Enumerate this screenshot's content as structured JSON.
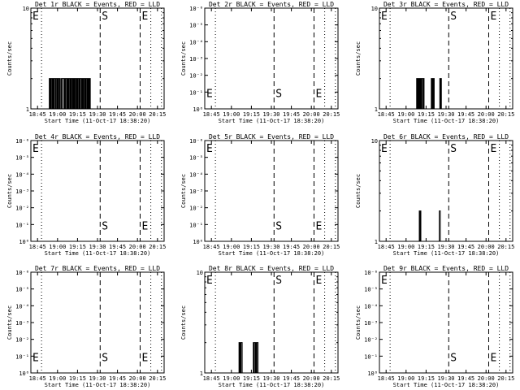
{
  "figure": {
    "xlabel": "Start Time (11-Oct-17 18:38:20)",
    "ylabel": "Counts/sec",
    "time_ticks": [
      "18:45",
      "19:00",
      "19:15",
      "19:30",
      "19:45",
      "20:00",
      "20:15"
    ],
    "markers": {
      "E_left": "E",
      "S": "S",
      "E_right": "E"
    },
    "colors": {
      "events": "#000000",
      "lld": "#ff0000",
      "background": "#ffffff"
    }
  },
  "chart_data": [
    {
      "type": "line",
      "title": "Det 1r BLACK = Events, RED = LLD",
      "yscale": "log",
      "yticks": [
        "1",
        "10"
      ],
      "ylim": [
        1,
        10
      ],
      "xlim_minutes": [
        0,
        100
      ],
      "vlines_dotted_minutes": [
        8,
        90,
        98
      ],
      "vlines_dashed_minutes": [
        52,
        82
      ],
      "series": [
        {
          "values_x_minutes": [
            13.5,
            13.8,
            14.0,
            14.3,
            14.6,
            15.0,
            15.3,
            15.7,
            16.0,
            16.3,
            16.7,
            17.1,
            17.5,
            17.9,
            18.3,
            18.7,
            19.0,
            19.4,
            19.8,
            20.2,
            20.6,
            21.0,
            21.3,
            21.7,
            22.1,
            22.5,
            22.9,
            23.2,
            23.6,
            24.0,
            24.4,
            24.8,
            25.2,
            25.5,
            25.9,
            26.3,
            26.7,
            27.0,
            27.4,
            27.8,
            28.2,
            28.6,
            29.0,
            29.3,
            29.7,
            30.1,
            30.5,
            30.9,
            31.2,
            31.6,
            32.0,
            32.4,
            32.8,
            33.2,
            33.5,
            33.9,
            34.3,
            34.7,
            35.1,
            35.5,
            35.8,
            36.2,
            36.6,
            37.0,
            37.4,
            37.8,
            38.1,
            38.5,
            38.9,
            39.3,
            39.7,
            40.0,
            40.4,
            40.8,
            41.2,
            41.6,
            42.0,
            42.3,
            42.7,
            43.1,
            43.5,
            43.9,
            44.3,
            44.6
          ],
          "values": [
            1,
            2,
            1,
            2,
            1,
            2,
            2,
            1,
            2,
            1,
            2,
            1,
            2,
            2,
            1,
            2,
            2,
            1,
            2,
            1,
            2,
            2,
            1,
            2,
            1,
            1,
            2,
            1,
            2,
            2,
            2,
            1,
            2,
            1,
            2,
            2,
            1,
            2,
            1,
            2,
            1,
            2,
            2,
            1,
            2,
            1,
            2,
            2,
            1,
            2,
            1,
            2,
            1,
            2,
            2,
            1,
            2,
            1,
            2,
            2,
            1,
            2,
            1,
            2,
            2,
            1,
            2,
            1,
            2,
            1,
            2,
            2,
            1,
            2,
            1,
            2,
            2,
            1,
            2,
            1,
            2,
            1,
            2,
            1
          ]
        }
      ],
      "annotations": [
        {
          "text": "E",
          "x_minutes": 0,
          "y_frac": 0.92
        },
        {
          "text": "S",
          "x_minutes": 52,
          "y_frac": 0.92
        },
        {
          "text": "E",
          "x_minutes": 82,
          "y_frac": 0.92
        }
      ]
    },
    {
      "type": "line",
      "title": "Det 2r BLACK = Events, RED = LLD",
      "yscale": "log",
      "yticks": [
        "10⁰",
        "10⁻¹",
        "10⁻²",
        "10⁻³",
        "10⁻⁴",
        "10⁻⁵",
        "10⁻⁶"
      ],
      "ylim": [
        1e-06,
        1
      ],
      "xlim_minutes": [
        0,
        100
      ],
      "vlines_dotted_minutes": [
        8,
        90,
        98
      ],
      "vlines_dashed_minutes": [
        52,
        82
      ],
      "series": [],
      "annotations": [
        {
          "text": "E",
          "x_minutes": 0,
          "y_frac": 0.15
        },
        {
          "text": "S",
          "x_minutes": 52,
          "y_frac": 0.15
        },
        {
          "text": "E",
          "x_minutes": 82,
          "y_frac": 0.15
        }
      ]
    },
    {
      "type": "line",
      "title": "Det 3r BLACK = Events, RED = LLD",
      "yscale": "log",
      "yticks": [
        "1",
        "10"
      ],
      "ylim": [
        1,
        10
      ],
      "xlim_minutes": [
        0,
        100
      ],
      "vlines_dotted_minutes": [
        8,
        90,
        98
      ],
      "vlines_dashed_minutes": [
        52,
        82
      ],
      "series": [
        {
          "values_x_minutes": [
            27.5,
            27.9,
            28.3,
            28.7,
            29.1,
            29.5,
            29.9,
            30.3,
            30.7,
            31.1,
            31.5,
            31.9,
            32.3,
            32.7,
            33.1,
            33.5,
            38.5,
            38.9,
            39.3,
            39.7,
            40.1,
            40.5,
            41.1,
            41.5,
            44.9,
            45.3,
            45.7,
            46.1,
            46.5,
            46.9
          ],
          "values": [
            1,
            2,
            1,
            2,
            1,
            2,
            1,
            2,
            1,
            2,
            1,
            2,
            2,
            1,
            2,
            1,
            1,
            2,
            1,
            2,
            1,
            2,
            1,
            1,
            1,
            2,
            1,
            2,
            1,
            1
          ]
        }
      ],
      "annotations": [
        {
          "text": "E",
          "x_minutes": 0,
          "y_frac": 0.92
        },
        {
          "text": "S",
          "x_minutes": 52,
          "y_frac": 0.92
        },
        {
          "text": "E",
          "x_minutes": 82,
          "y_frac": 0.92
        }
      ]
    },
    {
      "type": "line",
      "title": "Det 4r BLACK = Events, RED = LLD",
      "yscale": "log",
      "yticks": [
        "10⁰",
        "10⁻¹",
        "10⁻²",
        "10⁻³",
        "10⁻⁴",
        "10⁻⁵",
        "10⁻⁶"
      ],
      "ylim": [
        1e-06,
        1
      ],
      "xlim_minutes": [
        0,
        100
      ],
      "vlines_dotted_minutes": [
        8,
        90,
        98
      ],
      "vlines_dashed_minutes": [
        52,
        82
      ],
      "series": [],
      "annotations": [
        {
          "text": "E",
          "x_minutes": 0,
          "y_frac": 0.92
        },
        {
          "text": "S",
          "x_minutes": 52,
          "y_frac": 0.15
        },
        {
          "text": "E",
          "x_minutes": 82,
          "y_frac": 0.15
        }
      ]
    },
    {
      "type": "line",
      "title": "Det 5r BLACK = Events, RED = LLD",
      "yscale": "log",
      "yticks": [
        "10⁰",
        "10⁻¹",
        "10⁻²",
        "10⁻³",
        "10⁻⁴",
        "10⁻⁵",
        "10⁻⁶"
      ],
      "ylim": [
        1e-06,
        1
      ],
      "xlim_minutes": [
        0,
        100
      ],
      "vlines_dotted_minutes": [
        8,
        90,
        98
      ],
      "vlines_dashed_minutes": [
        52,
        82
      ],
      "series": [],
      "annotations": [
        {
          "text": "E",
          "x_minutes": 0,
          "y_frac": 0.92
        },
        {
          "text": "S",
          "x_minutes": 52,
          "y_frac": 0.15
        },
        {
          "text": "E",
          "x_minutes": 82,
          "y_frac": 0.15
        }
      ]
    },
    {
      "type": "line",
      "title": "Det 6r BLACK = Events, RED = LLD",
      "yscale": "log",
      "yticks": [
        "1",
        "10"
      ],
      "ylim": [
        1,
        10
      ],
      "xlim_minutes": [
        0,
        100
      ],
      "vlines_dotted_minutes": [
        8,
        90,
        98
      ],
      "vlines_dashed_minutes": [
        52,
        82
      ],
      "series": [
        {
          "values_x_minutes": [
            29.5,
            29.9,
            30.3,
            30.7,
            31.1,
            44.5,
            44.9,
            45.3,
            45.7,
            46.1
          ],
          "values": [
            1,
            2,
            1,
            2,
            1,
            1,
            2,
            2,
            1,
            1
          ]
        }
      ],
      "annotations": [
        {
          "text": "E",
          "x_minutes": 0,
          "y_frac": 0.92
        },
        {
          "text": "S",
          "x_minutes": 52,
          "y_frac": 0.92
        },
        {
          "text": "E",
          "x_minutes": 82,
          "y_frac": 0.92
        }
      ]
    },
    {
      "type": "line",
      "title": "Det 7r BLACK = Events, RED = LLD",
      "yscale": "log",
      "yticks": [
        "10⁰",
        "10⁻¹",
        "10⁻²",
        "10⁻³",
        "10⁻⁴",
        "10⁻⁵",
        "10⁻⁶"
      ],
      "ylim": [
        1e-06,
        1
      ],
      "xlim_minutes": [
        0,
        100
      ],
      "vlines_dotted_minutes": [
        8,
        90,
        98
      ],
      "vlines_dashed_minutes": [
        52,
        82
      ],
      "series": [],
      "annotations": [
        {
          "text": "E",
          "x_minutes": 0,
          "y_frac": 0.15
        },
        {
          "text": "S",
          "x_minutes": 52,
          "y_frac": 0.15
        },
        {
          "text": "E",
          "x_minutes": 82,
          "y_frac": 0.15
        }
      ]
    },
    {
      "type": "line",
      "title": "Det 8r BLACK = Events, RED = LLD",
      "yscale": "log",
      "yticks": [
        "1",
        "10"
      ],
      "ylim": [
        1,
        10
      ],
      "xlim_minutes": [
        0,
        100
      ],
      "vlines_dotted_minutes": [
        8,
        90,
        98
      ],
      "vlines_dashed_minutes": [
        52,
        82
      ],
      "series": [
        {
          "values_x_minutes": [
            25.3,
            25.7,
            26.1,
            26.5,
            26.9,
            27.3,
            27.7,
            28.1,
            28.5,
            36.0,
            36.4,
            36.8,
            37.2,
            37.6,
            38.0,
            38.4,
            38.8,
            39.2,
            39.6,
            40.0,
            40.4
          ],
          "values": [
            1,
            2,
            1,
            2,
            1,
            2,
            2,
            1,
            1,
            1,
            2,
            1,
            2,
            2,
            1,
            2,
            1,
            2,
            2,
            1,
            1
          ]
        }
      ],
      "annotations": [
        {
          "text": "E",
          "x_minutes": 0,
          "y_frac": 0.92
        },
        {
          "text": "S",
          "x_minutes": 52,
          "y_frac": 0.92
        },
        {
          "text": "E",
          "x_minutes": 82,
          "y_frac": 0.92
        }
      ]
    },
    {
      "type": "line",
      "title": "Det 9r BLACK = Events, RED = LLD",
      "yscale": "log",
      "yticks": [
        "10⁰",
        "10⁻¹",
        "10⁻²",
        "10⁻³",
        "10⁻⁴",
        "10⁻⁵",
        "10⁻⁶"
      ],
      "ylim": [
        1e-06,
        1
      ],
      "xlim_minutes": [
        0,
        100
      ],
      "vlines_dotted_minutes": [
        8,
        90,
        98
      ],
      "vlines_dashed_minutes": [
        52,
        82
      ],
      "series": [],
      "annotations": [
        {
          "text": "E",
          "x_minutes": 0,
          "y_frac": 0.92
        },
        {
          "text": "S",
          "x_minutes": 52,
          "y_frac": 0.15
        },
        {
          "text": "E",
          "x_minutes": 82,
          "y_frac": 0.15
        }
      ]
    }
  ]
}
